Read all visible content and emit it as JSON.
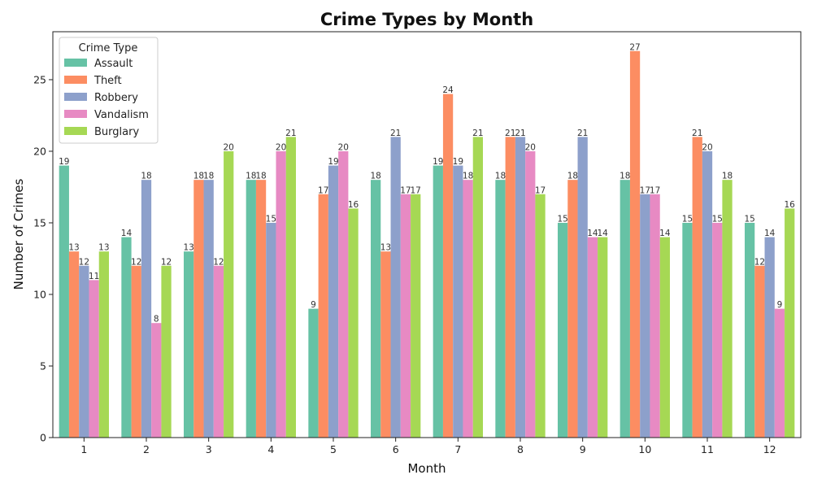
{
  "chart_data": {
    "type": "bar",
    "title": "Crime Types by Month",
    "xlabel": "Month",
    "ylabel": "Number of Crimes",
    "ylim": [
      0,
      28.35
    ],
    "yticks": [
      0,
      5,
      10,
      15,
      20,
      25
    ],
    "categories": [
      "1",
      "2",
      "3",
      "4",
      "5",
      "6",
      "7",
      "8",
      "9",
      "10",
      "11",
      "12"
    ],
    "legend": {
      "title": "Crime Type",
      "placement": "top-left"
    },
    "grid": false,
    "series": [
      {
        "name": "Assault",
        "color": "#66c2a5",
        "values": [
          19,
          14,
          13,
          18,
          9,
          18,
          19,
          18,
          15,
          18,
          15,
          15
        ]
      },
      {
        "name": "Theft",
        "color": "#fc8d62",
        "values": [
          13,
          12,
          18,
          18,
          17,
          13,
          24,
          21,
          18,
          27,
          21,
          12
        ]
      },
      {
        "name": "Robbery",
        "color": "#8da0cb",
        "values": [
          12,
          18,
          18,
          15,
          19,
          21,
          19,
          21,
          21,
          17,
          20,
          14
        ]
      },
      {
        "name": "Vandalism",
        "color": "#e78ac3",
        "values": [
          11,
          8,
          12,
          20,
          20,
          17,
          18,
          20,
          14,
          17,
          15,
          9
        ]
      },
      {
        "name": "Burglary",
        "color": "#a6d854",
        "values": [
          13,
          12,
          20,
          21,
          16,
          17,
          21,
          17,
          14,
          14,
          18,
          16
        ]
      }
    ]
  }
}
